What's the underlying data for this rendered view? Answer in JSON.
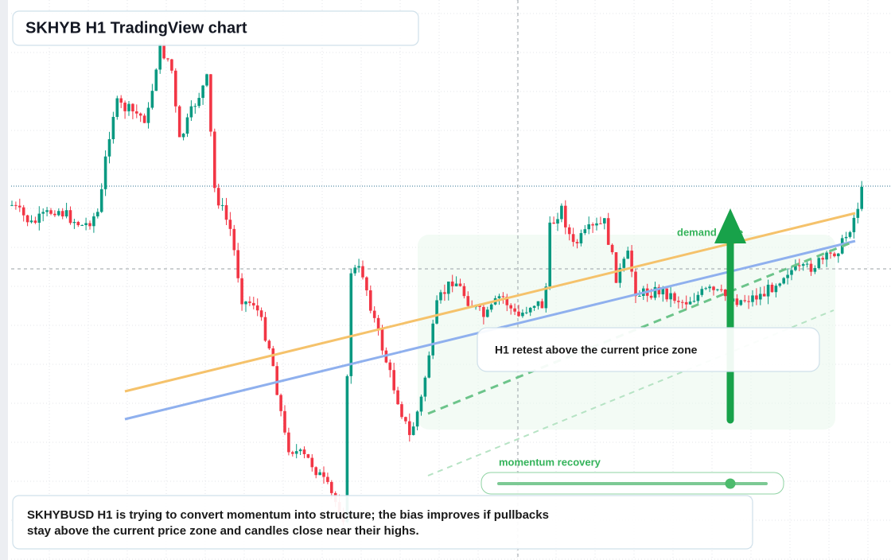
{
  "header": {
    "title": "SKHYB H1 TradingView chart"
  },
  "annotations": {
    "zone": "demand zone",
    "callout": "H1 retest above the current price zone",
    "slider": "momentum recovery"
  },
  "caption": {
    "lines": [
      "SKHYBUSD H1 is trying to convert momentum into structure; the bias improves if pullbacks",
      "stay above the current price zone and candles close near their highs."
    ]
  }
}
